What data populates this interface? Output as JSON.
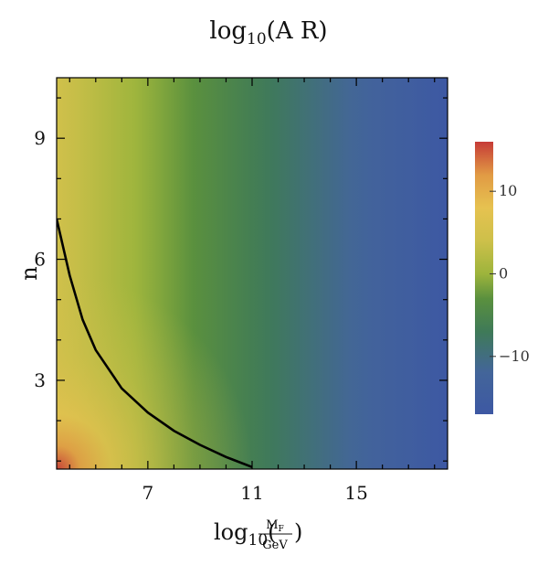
{
  "chart_data": {
    "type": "heatmap",
    "title": {
      "base": "log",
      "sub": "10",
      "arg": "(A R)"
    },
    "xlabel": {
      "base": "log",
      "sub": "10",
      "num_base": "M",
      "num_sub": "F",
      "den": "GeV"
    },
    "ylabel": "n",
    "xlim": [
      3.5,
      18.5
    ],
    "ylim": [
      0.8,
      10.5
    ],
    "xticks": [
      7,
      11,
      15
    ],
    "xtick_labels": [
      "7",
      "11",
      "15"
    ],
    "yticks": [
      3,
      6,
      9
    ],
    "ytick_labels": [
      "3",
      "6",
      "9"
    ],
    "colorbar": {
      "range": [
        -17,
        16
      ],
      "ticks": [
        10,
        0,
        -10
      ],
      "tick_labels": [
        "10",
        "0",
        "−10"
      ],
      "stops": [
        {
          "value": -17,
          "color": "#3d58a3"
        },
        {
          "value": -12,
          "color": "#43659a"
        },
        {
          "value": -7,
          "color": "#3f7a58"
        },
        {
          "value": -3,
          "color": "#5a903e"
        },
        {
          "value": 0,
          "color": "#9db43c"
        },
        {
          "value": 4,
          "color": "#cdc04a"
        },
        {
          "value": 8,
          "color": "#e6c250"
        },
        {
          "value": 12,
          "color": "#e19a44"
        },
        {
          "value": 16,
          "color": "#c63b37"
        }
      ]
    },
    "contour": {
      "level": 0,
      "color": "#000000",
      "points": [
        [
          3.5,
          7.0
        ],
        [
          4.0,
          5.6
        ],
        [
          4.5,
          4.5
        ],
        [
          5.0,
          3.75
        ],
        [
          6.0,
          2.8
        ],
        [
          7.0,
          2.2
        ],
        [
          8.0,
          1.75
        ],
        [
          9.0,
          1.4
        ],
        [
          10.0,
          1.1
        ],
        [
          11.0,
          0.85
        ]
      ]
    }
  }
}
